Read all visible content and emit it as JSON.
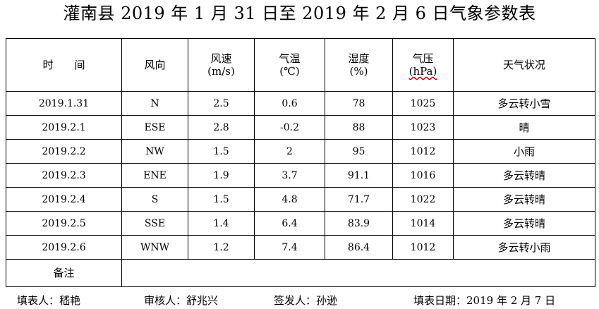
{
  "title": "灌南县 2019 年 1 月 31 日至 2019 年 2 月 6 日气象参数表",
  "headers": {
    "time": "时　　间",
    "wind_dir": "风向",
    "wind_speed": "风速",
    "wind_speed_unit": "(m/s)",
    "temp": "气温",
    "temp_unit": "(℃)",
    "humidity": "湿度",
    "humidity_unit": "(%)",
    "pressure": "气压",
    "pressure_unit": "(hPa)",
    "weather": "天气状况"
  },
  "rows": [
    {
      "date": "2019.1.31",
      "dir": "N",
      "speed": "2.5",
      "temp": "0.6",
      "humidity": "78",
      "pressure": "1025",
      "weather": "多云转小雪"
    },
    {
      "date": "2019.2.1",
      "dir": "ESE",
      "speed": "2.8",
      "temp": "-0.2",
      "humidity": "88",
      "pressure": "1023",
      "weather": "晴"
    },
    {
      "date": "2019.2.2",
      "dir": "NW",
      "speed": "1.5",
      "temp": "2",
      "humidity": "95",
      "pressure": "1012",
      "weather": "小雨"
    },
    {
      "date": "2019.2.3",
      "dir": "ENE",
      "speed": "1.9",
      "temp": "3.7",
      "humidity": "91.1",
      "pressure": "1016",
      "weather": "多云转晴"
    },
    {
      "date": "2019.2.4",
      "dir": "S",
      "speed": "1.5",
      "temp": "4.8",
      "humidity": "71.7",
      "pressure": "1022",
      "weather": "多云转晴"
    },
    {
      "date": "2019.2.5",
      "dir": "SSE",
      "speed": "1.4",
      "temp": "6.4",
      "humidity": "83.9",
      "pressure": "1014",
      "weather": "多云转晴"
    },
    {
      "date": "2019.2.6",
      "dir": "WNW",
      "speed": "1.2",
      "temp": "7.4",
      "humidity": "86.4",
      "pressure": "1012",
      "weather": "多云转小雨"
    }
  ],
  "note_label": "备注",
  "note_value": "",
  "footer": {
    "filler": "填表人：嵇艳",
    "reviewer": "审核人：舒兆兴",
    "issuer": "签发人：孙逊",
    "date": "填表日期：2019 年 2 月 7 日"
  }
}
